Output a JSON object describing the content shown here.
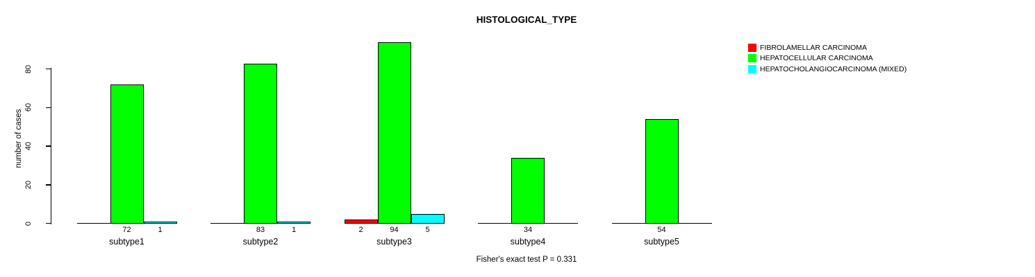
{
  "title": "HISTOLOGICAL_TYPE",
  "chart_data": {
    "type": "bar",
    "grouped": true,
    "title": "HISTOLOGICAL_TYPE",
    "categories": [
      "subtype1",
      "subtype2",
      "subtype3",
      "subtype4",
      "subtype5"
    ],
    "series": [
      {
        "name": "FIBROLAMELLAR CARCINOMA",
        "color": "#ff0000",
        "values": [
          0,
          0,
          2,
          0,
          0
        ]
      },
      {
        "name": "HEPATOCELLULAR CARCINOMA",
        "color": "#00ff00",
        "values": [
          72,
          83,
          94,
          34,
          54
        ]
      },
      {
        "name": "HEPATOCHOLANGIOCARCINOMA (MIXED)",
        "color": "#00ffff",
        "values": [
          1,
          1,
          5,
          0,
          0
        ]
      }
    ],
    "xlabel": "",
    "ylabel": "number of cases",
    "yticks": [
      0,
      20,
      40,
      60,
      80
    ],
    "ylim": [
      0,
      94
    ],
    "grid": false,
    "legend_position": "top-right",
    "show_value_labels": true,
    "value_labels_rule": "shown only for values greater than 0",
    "footnote": "Fisher's exact test P = 0.331",
    "axis_color": "#000000",
    "background_color": "#ffffff"
  }
}
